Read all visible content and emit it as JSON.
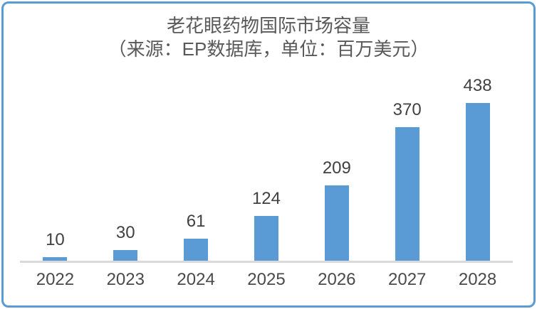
{
  "chart_data": {
    "type": "bar",
    "title": "老花眼药物国际市场容量",
    "subtitle": "（来源：EP数据库，单位：百万美元）",
    "categories": [
      "2022",
      "2023",
      "2024",
      "2025",
      "2026",
      "2027",
      "2028"
    ],
    "values": [
      10,
      30,
      61,
      124,
      209,
      370,
      438
    ],
    "xlabel": "",
    "ylabel": "",
    "ylim": [
      0,
      460
    ],
    "grid": false,
    "legend": "none",
    "data_labels": true,
    "bar_color": "#5B9BD5",
    "axis_line_color": "#D9D9D9",
    "title_color": "#595959",
    "data_label_color": "#414141",
    "tick_label_color": "#4a4a4a",
    "frame_border_color": "#5B9BD5"
  }
}
